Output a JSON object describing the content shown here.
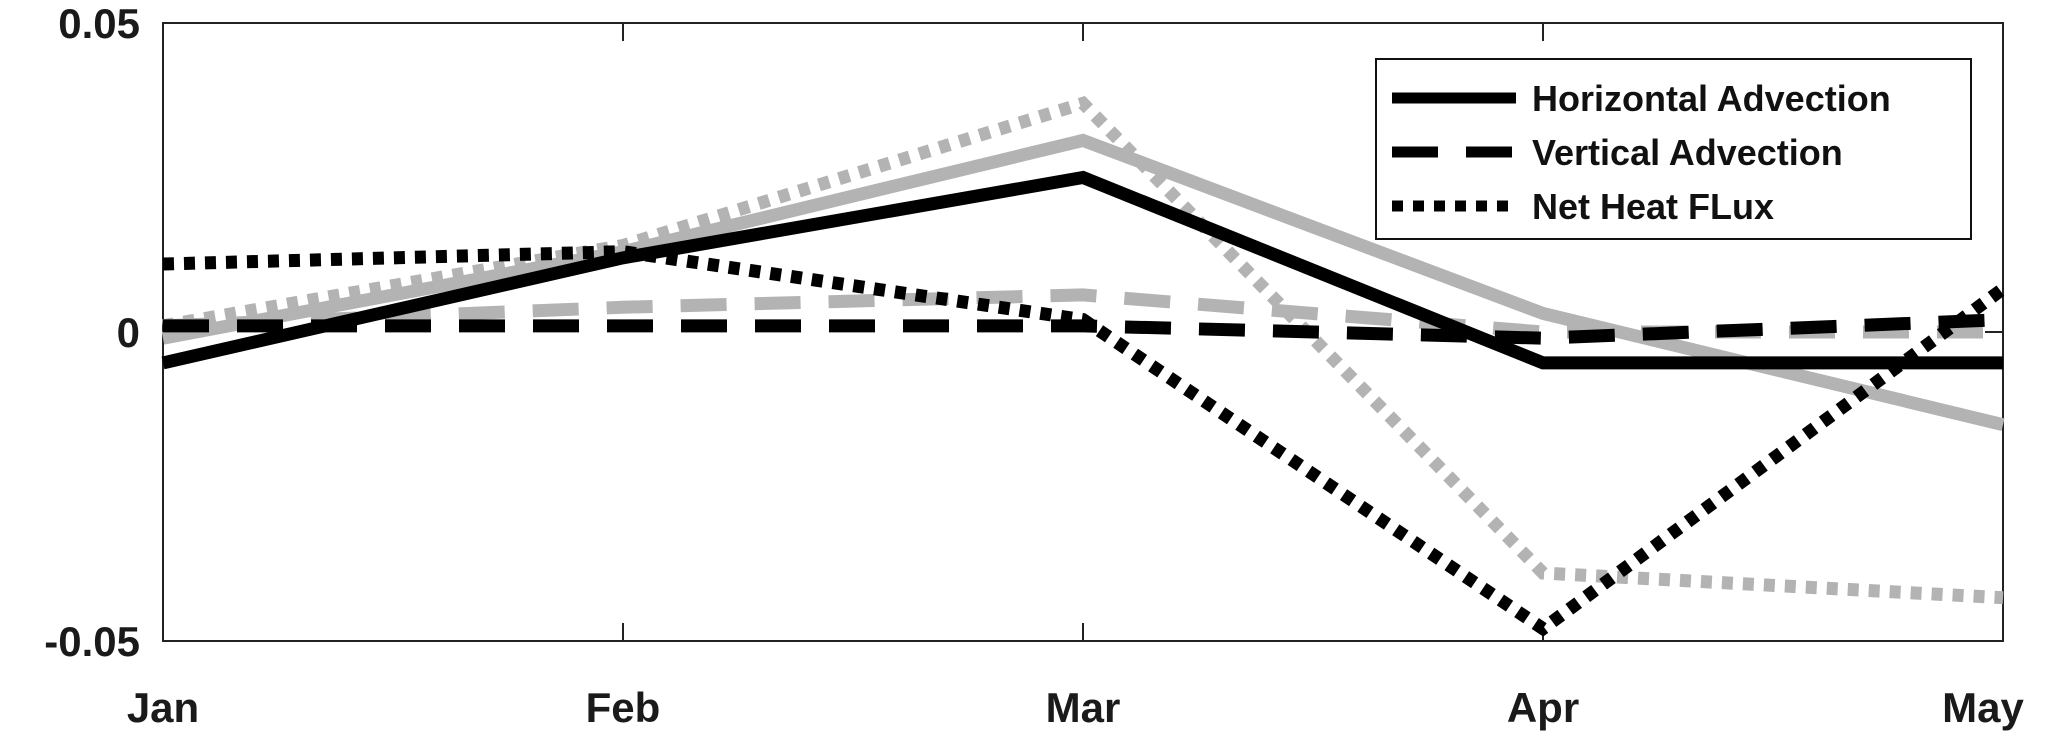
{
  "chart_data": {
    "type": "line",
    "title": "",
    "xlabel": "",
    "ylabel": "",
    "categories": [
      "Jan",
      "Feb",
      "Mar",
      "Apr",
      "May"
    ],
    "ylim": [
      -0.05,
      0.05
    ],
    "yticks": [
      -0.05,
      0,
      0.05
    ],
    "ytick_labels": [
      "-0.05",
      "0",
      "0.05"
    ],
    "grid": false,
    "legend_position": "top-right",
    "colors": {
      "dark": "#000000",
      "light": "#b3b3b3"
    },
    "series": [
      {
        "name": "Horizontal Advection",
        "style": "solid",
        "color": "light",
        "values": [
          -0.001,
          0.013,
          0.031,
          0.003,
          -0.015
        ]
      },
      {
        "name": "Vertical Advection",
        "style": "dashed",
        "color": "light",
        "values": [
          0.001,
          0.004,
          0.006,
          0.0,
          0.0
        ]
      },
      {
        "name": "Net Heat FLux",
        "style": "dotted",
        "color": "light",
        "values": [
          0.001,
          0.014,
          0.037,
          -0.039,
          -0.043
        ]
      },
      {
        "name": "Horizontal Advection",
        "style": "solid",
        "color": "dark",
        "values": [
          -0.005,
          0.012,
          0.025,
          -0.005,
          -0.005
        ]
      },
      {
        "name": "Vertical Advection",
        "style": "dashed",
        "color": "dark",
        "values": [
          0.001,
          0.001,
          0.001,
          -0.001,
          0.002
        ]
      },
      {
        "name": "Net Heat FLux",
        "style": "dotted",
        "color": "dark",
        "values": [
          0.011,
          0.013,
          0.002,
          -0.048,
          0.007
        ]
      }
    ],
    "legend": [
      {
        "label": "Horizontal Advection",
        "style": "solid"
      },
      {
        "label": "Vertical Advection",
        "style": "dashed"
      },
      {
        "label": "Net Heat FLux",
        "style": "dotted"
      }
    ]
  }
}
